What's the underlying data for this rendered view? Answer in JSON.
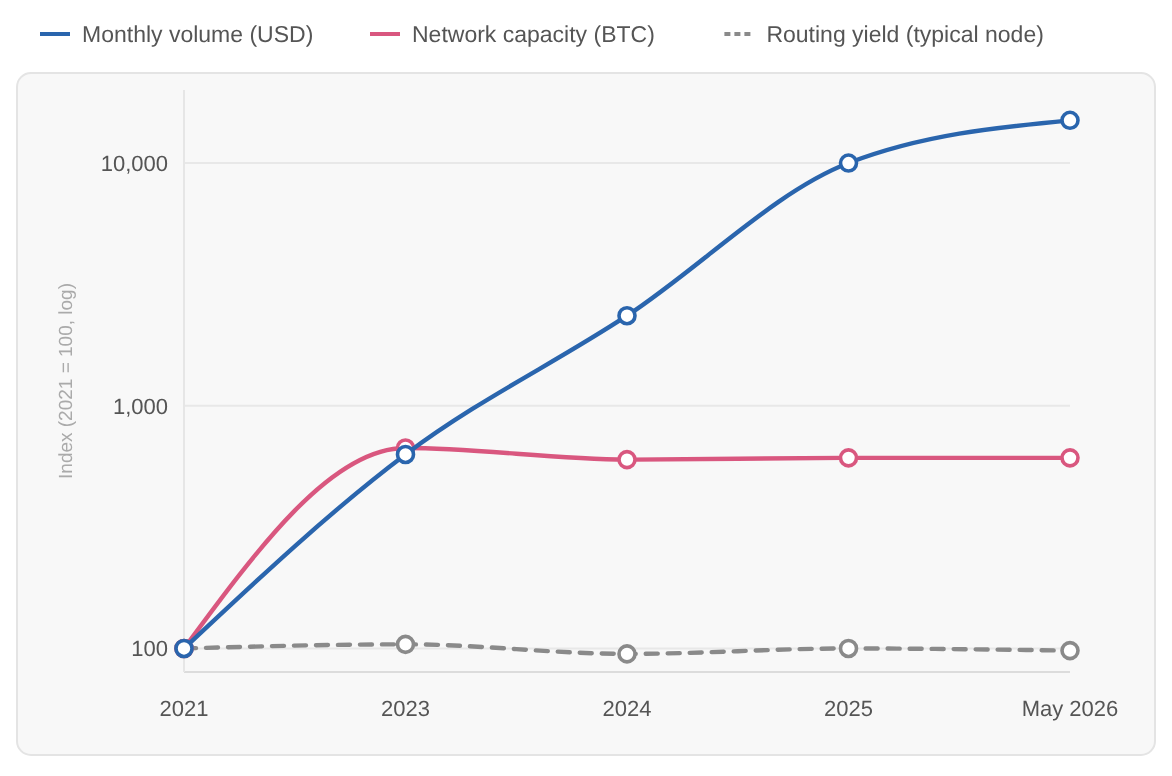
{
  "chart_data": {
    "type": "line",
    "ylabel": "Index (2021 = 100, log)",
    "categories": [
      "2021",
      "2023",
      "2024",
      "2025",
      "May 2026"
    ],
    "series": [
      {
        "name": "Monthly volume (USD)",
        "color": "#2a65ad",
        "values": [
          100,
          630,
          2350,
          10000,
          15000
        ]
      },
      {
        "name": "Network capacity (BTC)",
        "color": "#d9577f",
        "values": [
          100,
          670,
          600,
          610,
          610
        ]
      },
      {
        "name": "Routing yield (typical node)",
        "color": "#8a8a8a",
        "values": [
          100,
          104,
          95,
          100,
          98
        ],
        "line_style": "dashed"
      }
    ],
    "log": true,
    "ylim": [
      80,
      20000
    ],
    "yticks": [
      {
        "value": 100,
        "label": "100"
      },
      {
        "value": 1000,
        "label": "1,000"
      },
      {
        "value": 10000,
        "label": "10,000"
      }
    ],
    "grid": "y",
    "legend": "top left",
    "marker": "circle",
    "line_style": "solid"
  }
}
